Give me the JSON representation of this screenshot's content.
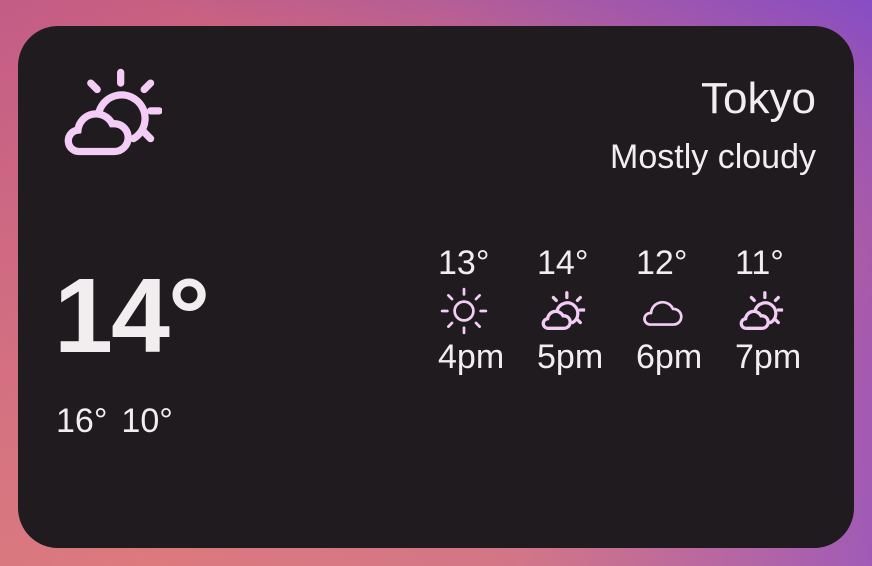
{
  "widget": {
    "city": "Tokyo",
    "condition": "Mostly cloudy",
    "condition_icon": "partly-cloudy-icon",
    "current_temp": "14°",
    "high": "16°",
    "low": "10°",
    "hourly": [
      {
        "temp": "13°",
        "icon": "sun",
        "time": "4pm"
      },
      {
        "temp": "14°",
        "icon": "partly-cloudy",
        "time": "5pm"
      },
      {
        "temp": "12°",
        "icon": "cloud",
        "time": "6pm"
      },
      {
        "temp": "11°",
        "icon": "partly-cloudy",
        "time": "7pm"
      }
    ]
  },
  "colors": {
    "card": "#1f1b1e",
    "icon": "#f3cdf6",
    "text": "#f2eef0"
  }
}
